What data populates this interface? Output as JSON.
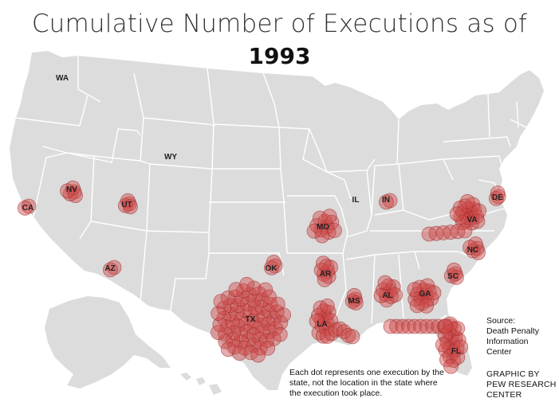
{
  "title": {
    "line1": "Cumulative Number of Executions as of",
    "line2": "1993"
  },
  "colors": {
    "land": "#dcdcdc",
    "borders": "#ffffff",
    "dot_fill": "#cf4a4a",
    "dot_stroke": "#a02828",
    "label": "#222222"
  },
  "states": [
    {
      "abbr": "WA",
      "count": 0
    },
    {
      "abbr": "CA",
      "count": 2
    },
    {
      "abbr": "NV",
      "count": 5
    },
    {
      "abbr": "UT",
      "count": 4
    },
    {
      "abbr": "WY",
      "count": 0
    },
    {
      "abbr": "AZ",
      "count": 2
    },
    {
      "abbr": "OK",
      "count": 3
    },
    {
      "abbr": "TX",
      "count": 71
    },
    {
      "abbr": "MO",
      "count": 11
    },
    {
      "abbr": "AR",
      "count": 8
    },
    {
      "abbr": "LA",
      "count": 21
    },
    {
      "abbr": "MS",
      "count": 4
    },
    {
      "abbr": "AL",
      "count": 10
    },
    {
      "abbr": "GA",
      "count": 15
    },
    {
      "abbr": "FL",
      "count": 33
    },
    {
      "abbr": "SC",
      "count": 4
    },
    {
      "abbr": "NC",
      "count": 5
    },
    {
      "abbr": "VA",
      "count": 24
    },
    {
      "abbr": "DE",
      "count": 3
    },
    {
      "abbr": "IL",
      "count": 0
    },
    {
      "abbr": "IN",
      "count": 2
    }
  ],
  "notes": {
    "dots": "Each dot represents one execution by the state, not the location in the state where the execution took place.",
    "source_heading": "Source:",
    "source_lines": [
      "Death Penalty",
      "Information",
      "Center"
    ],
    "credit_lines": [
      "GRAPHIC BY",
      "PEW RESEARCH",
      "CENTER"
    ]
  }
}
